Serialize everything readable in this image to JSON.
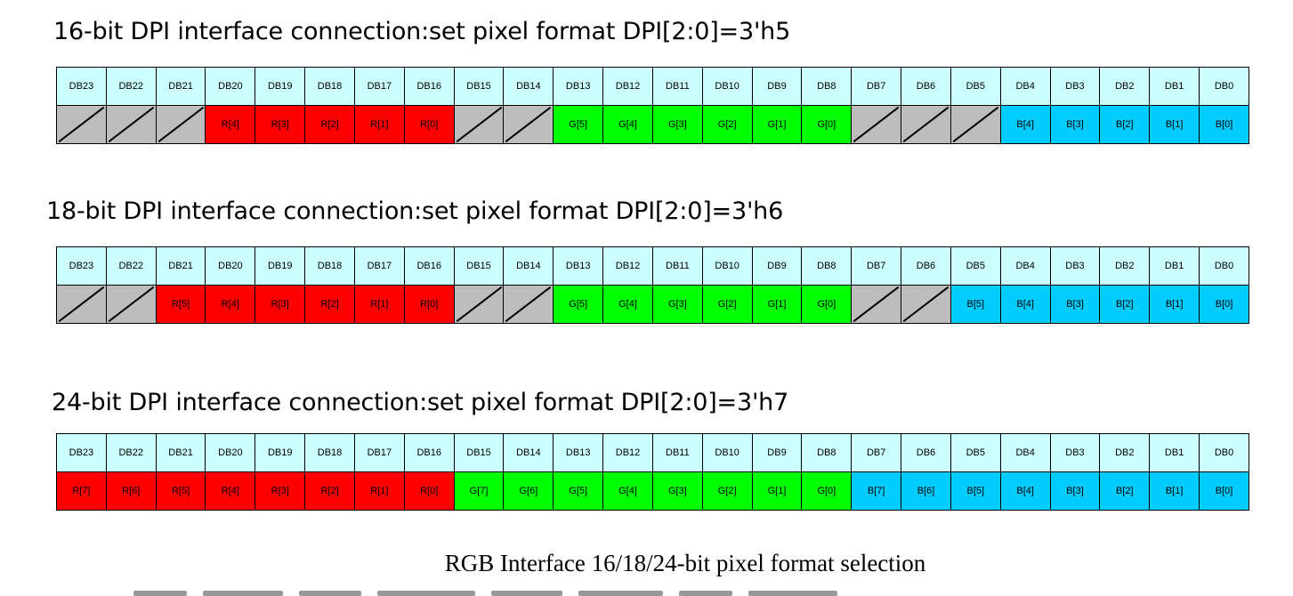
{
  "title_16": "16-bit DPI interface connection:set pixel format DPI[2:0]=3'h5",
  "title_18": "18-bit DPI interface connection:set pixel format DPI[2:0]=3'h6",
  "title_24": "24-bit DPI interface connection:set pixel format DPI[2:0]=3'h7",
  "caption": "RGB Interface 16/18/24-bit pixel format selection",
  "pin_headers": [
    "DB23",
    "DB22",
    "DB21",
    "DB20",
    "DB19",
    "DB18",
    "DB17",
    "DB16",
    "DB15",
    "DB14",
    "DB13",
    "DB12",
    "DB11",
    "DB10",
    "DB9",
    "DB8",
    "DB7",
    "DB6",
    "DB5",
    "DB4",
    "DB3",
    "DB2",
    "DB1",
    "DB0"
  ],
  "colors": {
    "red": "#ff0000",
    "green": "#00ff00",
    "blue": "#00ccff",
    "unused": "#bdbdbd",
    "header": "#ccffff"
  },
  "mapping_16": [
    "",
    "",
    "",
    "R[4]",
    "R[3]",
    "R[2]",
    "R[1]",
    "R[0]",
    "",
    "",
    "G[5]",
    "G[4]",
    "G[3]",
    "G[2]",
    "G[1]",
    "G[0]",
    "",
    "",
    "",
    "B[4]",
    "B[3]",
    "B[2]",
    "B[1]",
    "B[0]"
  ],
  "mapping_18": [
    "",
    "",
    "R[5]",
    "R[4]",
    "R[3]",
    "R[2]",
    "R[1]",
    "R[0]",
    "",
    "",
    "G[5]",
    "G[4]",
    "G[3]",
    "G[2]",
    "G[1]",
    "G[0]",
    "",
    "",
    "B[5]",
    "B[4]",
    "B[3]",
    "B[2]",
    "B[1]",
    "B[0]"
  ],
  "mapping_24": [
    "R[7]",
    "R[6]",
    "R[5]",
    "R[4]",
    "R[3]",
    "R[2]",
    "R[1]",
    "R[0]",
    "G[7]",
    "G[6]",
    "G[5]",
    "G[4]",
    "G[3]",
    "G[2]",
    "G[1]",
    "G[0]",
    "B[7]",
    "B[6]",
    "B[5]",
    "B[4]",
    "B[3]",
    "B[2]",
    "B[1]",
    "B[0]"
  ]
}
